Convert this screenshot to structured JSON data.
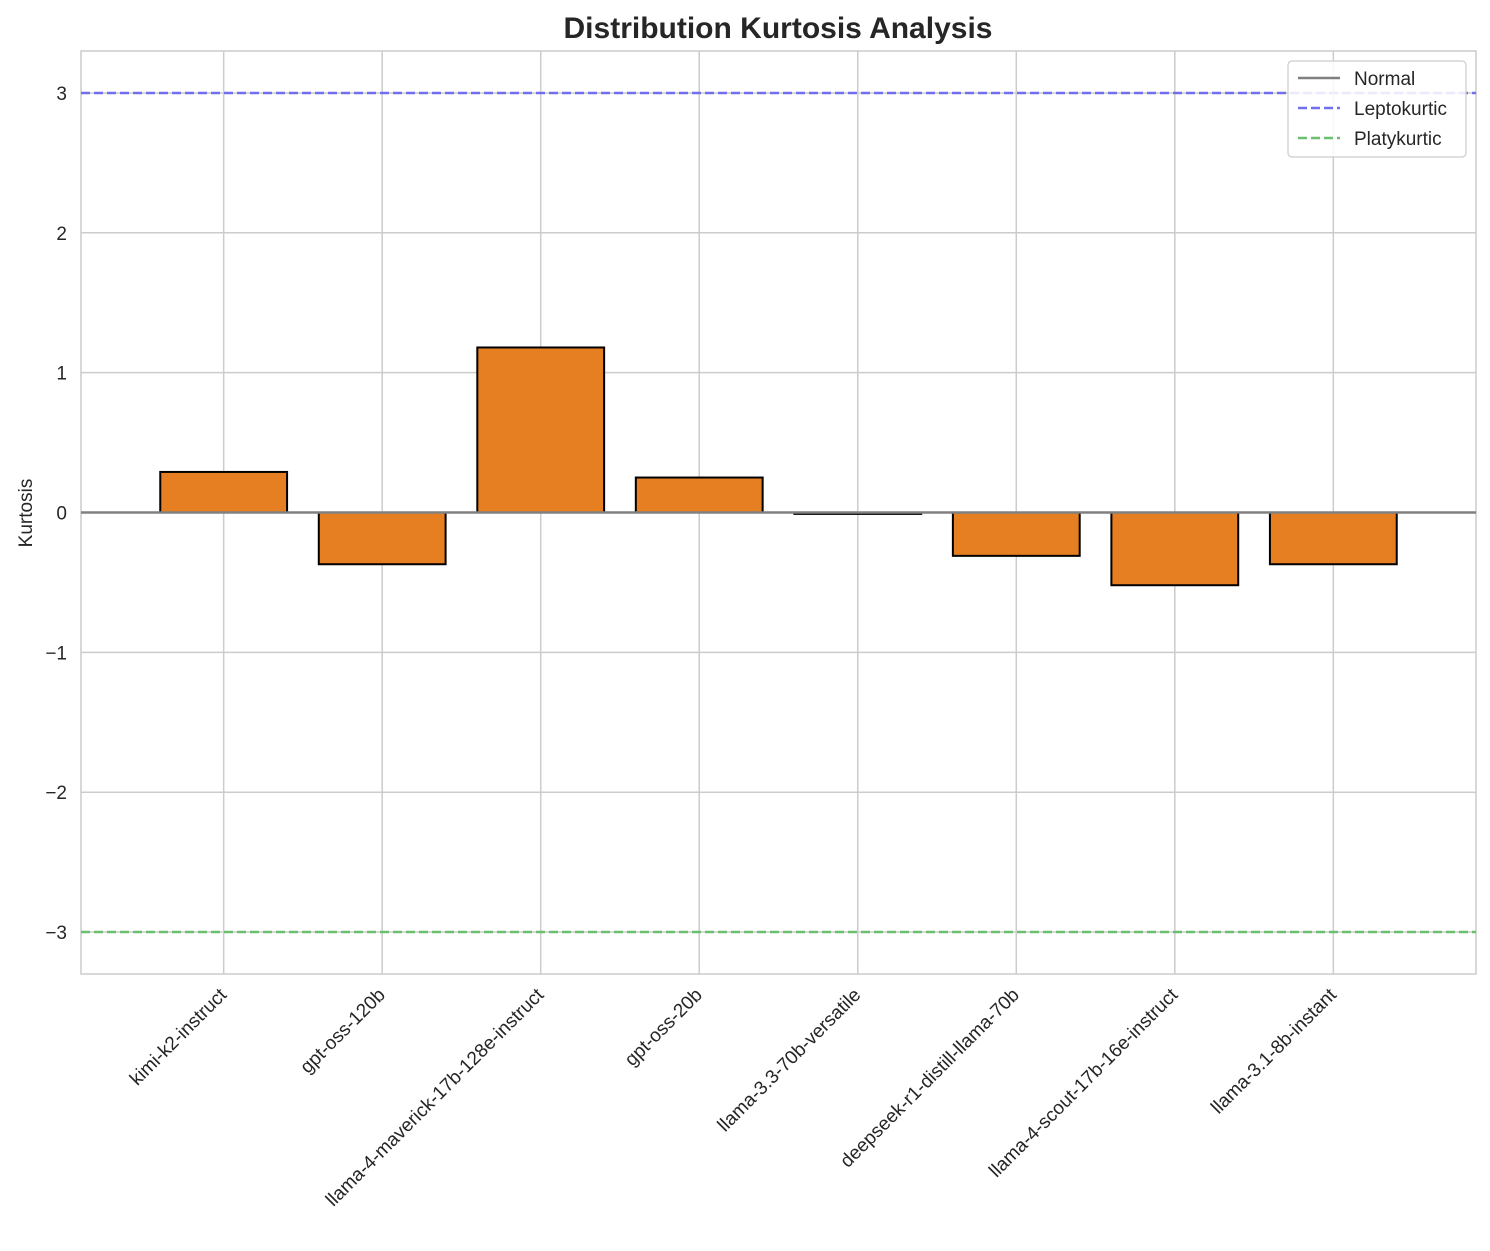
{
  "chart_data": {
    "type": "bar",
    "title": "Distribution Kurtosis Analysis",
    "xlabel": "",
    "ylabel": "Kurtosis",
    "ylim": [
      -3.3,
      3.3
    ],
    "yticks": [
      -3,
      -2,
      -1,
      0,
      1,
      2,
      3
    ],
    "ytick_labels": [
      "−3",
      "−2",
      "−1",
      "0",
      "1",
      "2",
      "3"
    ],
    "grid": true,
    "categories": [
      "kimi-k2-instruct",
      "gpt-oss-120b",
      "llama-4-maverick-17b-128e-instruct",
      "gpt-oss-20b",
      "llama-3.3-70b-versatile",
      "deepseek-r1-distill-llama-70b",
      "llama-4-scout-17b-16e-instruct",
      "llama-3.1-8b-instant"
    ],
    "values": [
      0.29,
      -0.37,
      1.18,
      0.25,
      -0.01,
      -0.31,
      -0.52,
      -0.37
    ],
    "bar_color": "#e67e22",
    "bar_edge_color": "#000000",
    "reference_lines": [
      {
        "name": "Normal",
        "y": 0,
        "style": "solid",
        "color": "#808080"
      },
      {
        "name": "Leptokurtic",
        "y": 3,
        "style": "dashed",
        "color": "#7070ee"
      },
      {
        "name": "Platykurtic",
        "y": -3,
        "style": "dashed",
        "color": "#6cbf6c"
      }
    ],
    "legend_position": "top-right"
  }
}
